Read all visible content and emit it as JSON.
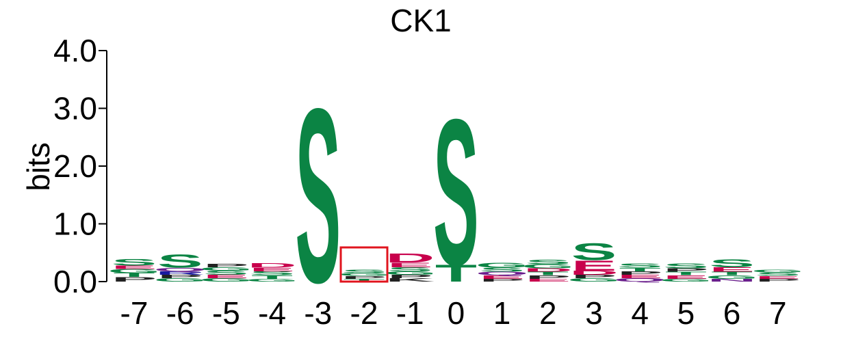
{
  "chart_data": {
    "type": "sequence-logo",
    "title": "CK1",
    "ylabel": "bits",
    "ylim": [
      0,
      4.0
    ],
    "yticks": [
      "0.0",
      "1.0",
      "2.0",
      "3.0",
      "4.0"
    ],
    "ytick_values": [
      0,
      1,
      2,
      3,
      4
    ],
    "categories": [
      "-7",
      "-6",
      "-5",
      "-4",
      "-3",
      "-2",
      "-1",
      "0",
      "1",
      "2",
      "3",
      "4",
      "5",
      "6",
      "7"
    ],
    "highlight_position": "-2",
    "highlight_color": "#e0141e",
    "colors": {
      "S": "#0b8444",
      "T": "#0b8444",
      "G": "#0b8444",
      "D": "#c8004c",
      "E": "#c8004c",
      "P": "#222222",
      "K": "#222222",
      "Q": "#6a1e8c",
      "N": "#6a1e8c",
      "R": "#1a1aa0"
    },
    "positions": [
      {
        "position": "-7",
        "letters": [
          {
            "letter": "P",
            "bits": 0.08
          },
          {
            "letter": "T",
            "bits": 0.07
          },
          {
            "letter": "G",
            "bits": 0.07
          },
          {
            "letter": "E",
            "bits": 0.06
          },
          {
            "letter": "S",
            "bits": 0.12
          }
        ]
      },
      {
        "position": "-6",
        "letters": [
          {
            "letter": "G",
            "bits": 0.06
          },
          {
            "letter": "P",
            "bits": 0.06
          },
          {
            "letter": "R",
            "bits": 0.06
          },
          {
            "letter": "Q",
            "bits": 0.06
          },
          {
            "letter": "S",
            "bits": 0.24
          }
        ]
      },
      {
        "position": "-5",
        "letters": [
          {
            "letter": "G",
            "bits": 0.06
          },
          {
            "letter": "E",
            "bits": 0.06
          },
          {
            "letter": "S",
            "bits": 0.07
          },
          {
            "letter": "G",
            "bits": 0.06
          },
          {
            "letter": "P",
            "bits": 0.06
          }
        ]
      },
      {
        "position": "-4",
        "letters": [
          {
            "letter": "G",
            "bits": 0.05
          },
          {
            "letter": "T",
            "bits": 0.06
          },
          {
            "letter": "S",
            "bits": 0.07
          },
          {
            "letter": "E",
            "bits": 0.06
          },
          {
            "letter": "D",
            "bits": 0.08
          }
        ]
      },
      {
        "position": "-3",
        "letters": [
          {
            "letter": "S",
            "bits": 3.1
          }
        ]
      },
      {
        "position": "-2",
        "letters": [
          {
            "letter": "T",
            "bits": 0.05
          },
          {
            "letter": "P",
            "bits": 0.05
          },
          {
            "letter": "G",
            "bits": 0.05
          },
          {
            "letter": "S",
            "bits": 0.06
          }
        ]
      },
      {
        "position": "-1",
        "letters": [
          {
            "letter": "K",
            "bits": 0.06
          },
          {
            "letter": "P",
            "bits": 0.06
          },
          {
            "letter": "G",
            "bits": 0.06
          },
          {
            "letter": "S",
            "bits": 0.07
          },
          {
            "letter": "E",
            "bits": 0.08
          },
          {
            "letter": "D",
            "bits": 0.16
          }
        ]
      },
      {
        "position": "0",
        "letters": [
          {
            "letter": "T",
            "bits": 0.3
          },
          {
            "letter": "S",
            "bits": 2.6
          }
        ]
      },
      {
        "position": "1",
        "letters": [
          {
            "letter": "P",
            "bits": 0.05
          },
          {
            "letter": "E",
            "bits": 0.06
          },
          {
            "letter": "Q",
            "bits": 0.06
          },
          {
            "letter": "S",
            "bits": 0.07
          },
          {
            "letter": "G",
            "bits": 0.09
          }
        ]
      },
      {
        "position": "2",
        "letters": [
          {
            "letter": "E",
            "bits": 0.05
          },
          {
            "letter": "P",
            "bits": 0.06
          },
          {
            "letter": "T",
            "bits": 0.06
          },
          {
            "letter": "D",
            "bits": 0.06
          },
          {
            "letter": "G",
            "bits": 0.07
          },
          {
            "letter": "S",
            "bits": 0.08
          }
        ]
      },
      {
        "position": "3",
        "letters": [
          {
            "letter": "G",
            "bits": 0.06
          },
          {
            "letter": "P",
            "bits": 0.06
          },
          {
            "letter": "D",
            "bits": 0.07
          },
          {
            "letter": "E",
            "bits": 0.18
          },
          {
            "letter": "S",
            "bits": 0.3
          }
        ]
      },
      {
        "position": "4",
        "letters": [
          {
            "letter": "Q",
            "bits": 0.06
          },
          {
            "letter": "E",
            "bits": 0.06
          },
          {
            "letter": "P",
            "bits": 0.06
          },
          {
            "letter": "T",
            "bits": 0.06
          },
          {
            "letter": "S",
            "bits": 0.07
          }
        ]
      },
      {
        "position": "5",
        "letters": [
          {
            "letter": "G",
            "bits": 0.05
          },
          {
            "letter": "E",
            "bits": 0.06
          },
          {
            "letter": "T",
            "bits": 0.06
          },
          {
            "letter": "P",
            "bits": 0.06
          },
          {
            "letter": "S",
            "bits": 0.09
          }
        ]
      },
      {
        "position": "6",
        "letters": [
          {
            "letter": "N",
            "bits": 0.05
          },
          {
            "letter": "G",
            "bits": 0.06
          },
          {
            "letter": "T",
            "bits": 0.06
          },
          {
            "letter": "E",
            "bits": 0.08
          },
          {
            "letter": "S",
            "bits": 0.14
          }
        ]
      },
      {
        "position": "7",
        "letters": [
          {
            "letter": "P",
            "bits": 0.05
          },
          {
            "letter": "E",
            "bits": 0.05
          },
          {
            "letter": "S",
            "bits": 0.06
          },
          {
            "letter": "G",
            "bits": 0.05
          }
        ]
      }
    ]
  }
}
